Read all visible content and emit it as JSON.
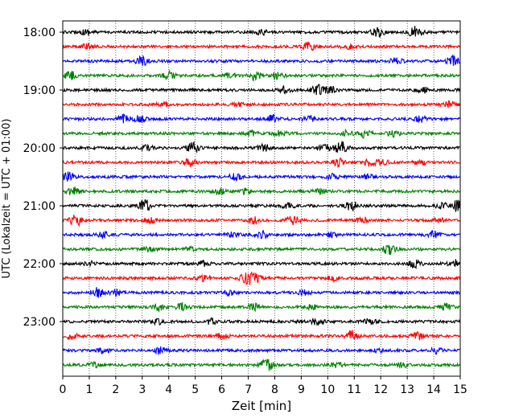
{
  "chart_data": {
    "type": "line",
    "title": "",
    "xlabel": "Zeit  [min]",
    "ylabel": "UTC (Lokalzeit = UTC + 01:00)",
    "xlim": [
      0,
      15
    ],
    "x_ticks": [
      "0",
      "1",
      "2",
      "3",
      "4",
      "5",
      "6",
      "7",
      "8",
      "9",
      "10",
      "11",
      "12",
      "13",
      "14",
      "15"
    ],
    "y_ticks": [
      "18:00",
      "19:00",
      "20:00",
      "21:00",
      "22:00",
      "23:00"
    ],
    "grid_x": true,
    "grid_style": "dotted",
    "trace_interval_min": 15,
    "first_trace": "18:00",
    "last_trace": "23:45",
    "trace_colors": [
      "#000000",
      "#ff0000",
      "#0000ff",
      "#008000"
    ],
    "traces": [
      {
        "label": "18:00",
        "color": "#000000",
        "bursts": [
          [
            11.9,
            0.8
          ],
          [
            13.3,
            1.0
          ],
          [
            0.9,
            0.4
          ],
          [
            7.5,
            0.4
          ]
        ]
      },
      {
        "label": "18:15",
        "color": "#ff0000",
        "bursts": [
          [
            0.9,
            0.4
          ],
          [
            9.3,
            0.6
          ],
          [
            10.8,
            0.4
          ]
        ]
      },
      {
        "label": "18:30",
        "color": "#0000ff",
        "bursts": [
          [
            3.0,
            0.7
          ],
          [
            12.6,
            0.5
          ],
          [
            14.7,
            0.9
          ]
        ]
      },
      {
        "label": "18:45",
        "color": "#008000",
        "bursts": [
          [
            0.3,
            0.6
          ],
          [
            4.0,
            0.6
          ],
          [
            7.3,
            0.8
          ],
          [
            6.3,
            0.4
          ],
          [
            8.1,
            0.5
          ]
        ]
      },
      {
        "label": "19:00",
        "color": "#000000",
        "bursts": [
          [
            8.4,
            0.5
          ],
          [
            9.6,
            0.9
          ],
          [
            10.1,
            0.6
          ],
          [
            13.6,
            0.4
          ]
        ]
      },
      {
        "label": "19:15",
        "color": "#ff0000",
        "bursts": [
          [
            6.6,
            0.3
          ],
          [
            14.6,
            0.5
          ],
          [
            3.8,
            0.3
          ]
        ]
      },
      {
        "label": "19:30",
        "color": "#0000ff",
        "bursts": [
          [
            2.3,
            0.6
          ],
          [
            2.9,
            0.5
          ],
          [
            7.9,
            0.6
          ],
          [
            9.3,
            0.4
          ],
          [
            13.5,
            0.5
          ]
        ]
      },
      {
        "label": "19:45",
        "color": "#008000",
        "bursts": [
          [
            7.1,
            0.4
          ],
          [
            8.2,
            0.5
          ],
          [
            11.4,
            0.6
          ],
          [
            12.5,
            0.5
          ],
          [
            10.7,
            0.4
          ]
        ]
      },
      {
        "label": "20:00",
        "color": "#000000",
        "bursts": [
          [
            4.9,
            0.8
          ],
          [
            10.5,
            1.0
          ],
          [
            7.6,
            0.6
          ],
          [
            9.9,
            0.5
          ],
          [
            3.2,
            0.4
          ]
        ]
      },
      {
        "label": "20:15",
        "color": "#ff0000",
        "bursts": [
          [
            4.8,
            0.6
          ],
          [
            10.4,
            0.6
          ],
          [
            11.6,
            0.5
          ],
          [
            13.5,
            0.5
          ],
          [
            12.1,
            0.4
          ]
        ]
      },
      {
        "label": "20:30",
        "color": "#0000ff",
        "bursts": [
          [
            0.2,
            0.7
          ],
          [
            6.5,
            0.5
          ],
          [
            10.2,
            0.4
          ],
          [
            11.5,
            0.3
          ]
        ]
      },
      {
        "label": "20:45",
        "color": "#008000",
        "bursts": [
          [
            0.4,
            0.6
          ],
          [
            5.9,
            0.5
          ],
          [
            6.9,
            0.4
          ],
          [
            9.7,
            0.4
          ]
        ]
      },
      {
        "label": "21:00",
        "color": "#000000",
        "bursts": [
          [
            3.1,
            0.8
          ],
          [
            10.9,
            0.8
          ],
          [
            14.9,
            0.9
          ],
          [
            8.5,
            0.5
          ],
          [
            14.3,
            0.4
          ]
        ]
      },
      {
        "label": "21:15",
        "color": "#ff0000",
        "bursts": [
          [
            0.5,
            0.9
          ],
          [
            3.3,
            0.5
          ],
          [
            8.7,
            0.7
          ],
          [
            7.2,
            0.5
          ],
          [
            11.3,
            0.4
          ],
          [
            14.2,
            0.4
          ]
        ]
      },
      {
        "label": "21:30",
        "color": "#0000ff",
        "bursts": [
          [
            7.5,
            0.6
          ],
          [
            10.2,
            0.4
          ],
          [
            14.0,
            0.5
          ],
          [
            6.4,
            0.4
          ],
          [
            1.5,
            0.4
          ]
        ]
      },
      {
        "label": "21:45",
        "color": "#008000",
        "bursts": [
          [
            12.3,
            0.8
          ],
          [
            3.2,
            0.4
          ],
          [
            4.8,
            0.3
          ]
        ]
      },
      {
        "label": "22:00",
        "color": "#000000",
        "bursts": [
          [
            13.3,
            0.6
          ],
          [
            14.8,
            0.6
          ],
          [
            5.3,
            0.4
          ],
          [
            1.0,
            0.3
          ]
        ]
      },
      {
        "label": "22:15",
        "color": "#ff0000",
        "bursts": [
          [
            7.2,
            0.9
          ],
          [
            6.9,
            0.6
          ],
          [
            10.2,
            0.4
          ],
          [
            5.3,
            0.4
          ]
        ]
      },
      {
        "label": "22:30",
        "color": "#0000ff",
        "bursts": [
          [
            1.3,
            0.8
          ],
          [
            2.0,
            0.5
          ],
          [
            6.3,
            0.4
          ],
          [
            9.1,
            0.4
          ]
        ]
      },
      {
        "label": "22:45",
        "color": "#008000",
        "bursts": [
          [
            4.5,
            0.6
          ],
          [
            3.6,
            0.5
          ],
          [
            7.2,
            0.5
          ],
          [
            14.5,
            0.5
          ],
          [
            9.4,
            0.4
          ]
        ]
      },
      {
        "label": "23:00",
        "color": "#000000",
        "bursts": [
          [
            9.6,
            0.6
          ],
          [
            11.6,
            0.5
          ],
          [
            3.6,
            0.4
          ],
          [
            5.6,
            0.4
          ]
        ]
      },
      {
        "label": "23:15",
        "color": "#ff0000",
        "bursts": [
          [
            10.9,
            0.9
          ],
          [
            13.4,
            0.7
          ],
          [
            0.3,
            0.5
          ],
          [
            6.0,
            0.4
          ]
        ]
      },
      {
        "label": "23:30",
        "color": "#0000ff",
        "bursts": [
          [
            3.7,
            0.6
          ],
          [
            1.5,
            0.4
          ],
          [
            11.9,
            0.4
          ],
          [
            14.1,
            0.4
          ]
        ]
      },
      {
        "label": "23:45",
        "color": "#008000",
        "bursts": [
          [
            7.7,
            1.0
          ],
          [
            10.3,
            0.4
          ],
          [
            12.8,
            0.4
          ],
          [
            1.2,
            0.3
          ]
        ]
      }
    ]
  }
}
